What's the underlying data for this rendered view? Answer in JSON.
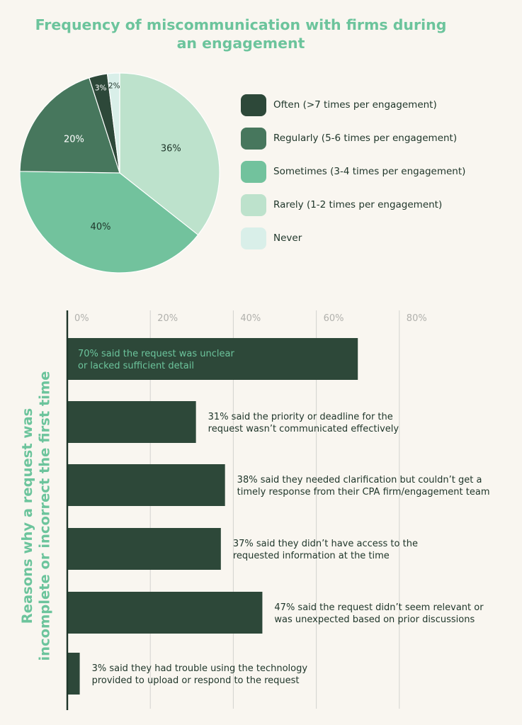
{
  "colors": {
    "title": "#6cc49c",
    "text": "#1e3529",
    "grid": "#d3d3cf",
    "tick": "#b0b0ac",
    "bar": "#2d4839",
    "bar_label_inside": "#6cc49c"
  },
  "chart_data": [
    {
      "type": "pie",
      "title": "Frequency of miscommunication with firms during an engagement",
      "start_angle_deg": 0,
      "slices": [
        {
          "label": "Rarely (1-2 times per engagement)",
          "value": 36,
          "display": "36%",
          "color": "#bde2cc"
        },
        {
          "label": "Sometimes (3-4 times per engagement)",
          "value": 40,
          "display": "40%",
          "color": "#72c29d"
        },
        {
          "label": "Regularly (5-6 times per engagement)",
          "value": 20,
          "display": "20%",
          "color": "#47775d"
        },
        {
          "label": "Often (>7 times per engagement)",
          "value": 3,
          "display": "3%",
          "color": "#2d4839"
        },
        {
          "label": "Never",
          "value": 2,
          "display": "2%",
          "color": "#d9efe9"
        }
      ],
      "legend": [
        {
          "label": "Often (>7 times per engagement)",
          "color": "#2d4839"
        },
        {
          "label": "Regularly (5-6 times per engagement)",
          "color": "#47775d"
        },
        {
          "label": "Sometimes (3-4 times per engagement)",
          "color": "#72c29d"
        },
        {
          "label": "Rarely (1-2 times per engagement)",
          "color": "#bde2cc"
        },
        {
          "label": "Never",
          "color": "#d9efe9"
        }
      ],
      "legend_position": "right"
    },
    {
      "type": "bar",
      "orientation": "horizontal",
      "ylabel": "Reasons why a request was incomplete or incorrect the first time",
      "xlim": [
        0,
        80
      ],
      "xticks": [
        "0%",
        "20%",
        "40%",
        "60%",
        "80%"
      ],
      "xtick_values": [
        0,
        20,
        40,
        60,
        80
      ],
      "grid": true,
      "bars": [
        {
          "value": 70,
          "label_lines": [
            "70% said the request was unclear",
            "or lacked sufficient detail"
          ],
          "label_inside": true
        },
        {
          "value": 31,
          "label_lines": [
            "31% said the priority or deadline for the",
            "request wasn’t communicated effectively"
          ],
          "label_inside": false
        },
        {
          "value": 38,
          "label_lines": [
            "38% said they needed clarification but couldn’t get a",
            "timely response from their CPA firm/engagement team"
          ],
          "label_inside": false
        },
        {
          "value": 37,
          "label_lines": [
            "37% said they didn’t have access to the",
            "requested information at the time"
          ],
          "label_inside": false
        },
        {
          "value": 47,
          "label_lines": [
            "47% said the request didn’t seem relevant or",
            "was unexpected based on prior discussions"
          ],
          "label_inside": false
        },
        {
          "value": 3,
          "label_lines": [
            "3% said they had trouble using the technology",
            "provided to upload or respond to the request"
          ],
          "label_inside": false
        }
      ]
    }
  ]
}
